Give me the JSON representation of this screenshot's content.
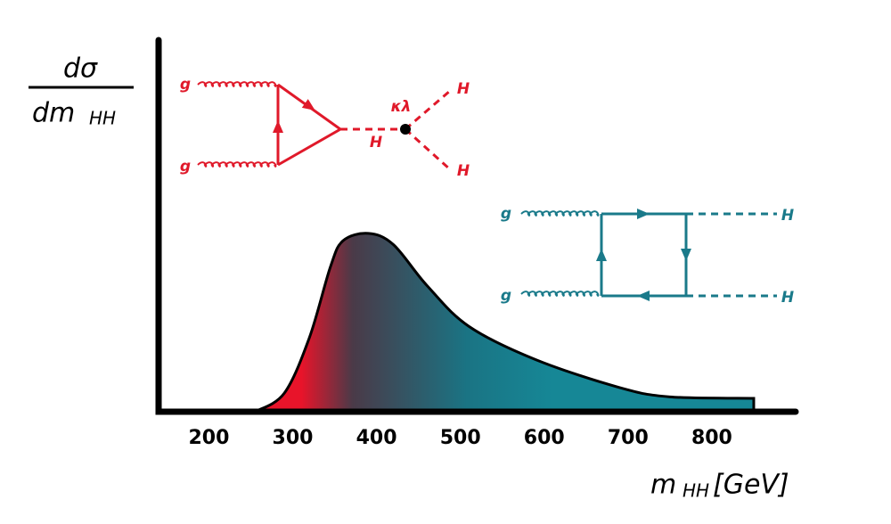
{
  "chart_data": {
    "type": "area",
    "y_label": {
      "numerator": "dσ",
      "denominator": "dm",
      "subscript": "HH"
    },
    "x_label": {
      "main": "m",
      "subscript": "HH",
      "unit": "[GeV]"
    },
    "x": [
      255,
      290,
      320,
      345,
      360,
      390,
      420,
      460,
      510,
      590,
      690,
      750,
      850
    ],
    "values": [
      0,
      0.05,
      0.2,
      0.39,
      0.46,
      0.48,
      0.45,
      0.34,
      0.23,
      0.14,
      0.065,
      0.04,
      0.036
    ],
    "xlim": [
      140,
      900
    ],
    "xticks": [
      200,
      300,
      400,
      500,
      600,
      700,
      800
    ],
    "ylim": [
      0,
      1
    ],
    "colors": [
      "#e8142a",
      "#4a3a48",
      "#1a7484",
      "#168796"
    ],
    "diagrams": {
      "triangle": {
        "color": "#e0192a",
        "gluon_top": "g",
        "gluon_bottom": "g",
        "propagator": "H",
        "coupling": "κλ",
        "higgs_top": "H",
        "higgs_bottom": "H"
      },
      "box": {
        "color": "#1a7a8a",
        "gluon_top": "g",
        "gluon_bottom": "g",
        "higgs_top": "H",
        "higgs_bottom": "H"
      }
    }
  }
}
